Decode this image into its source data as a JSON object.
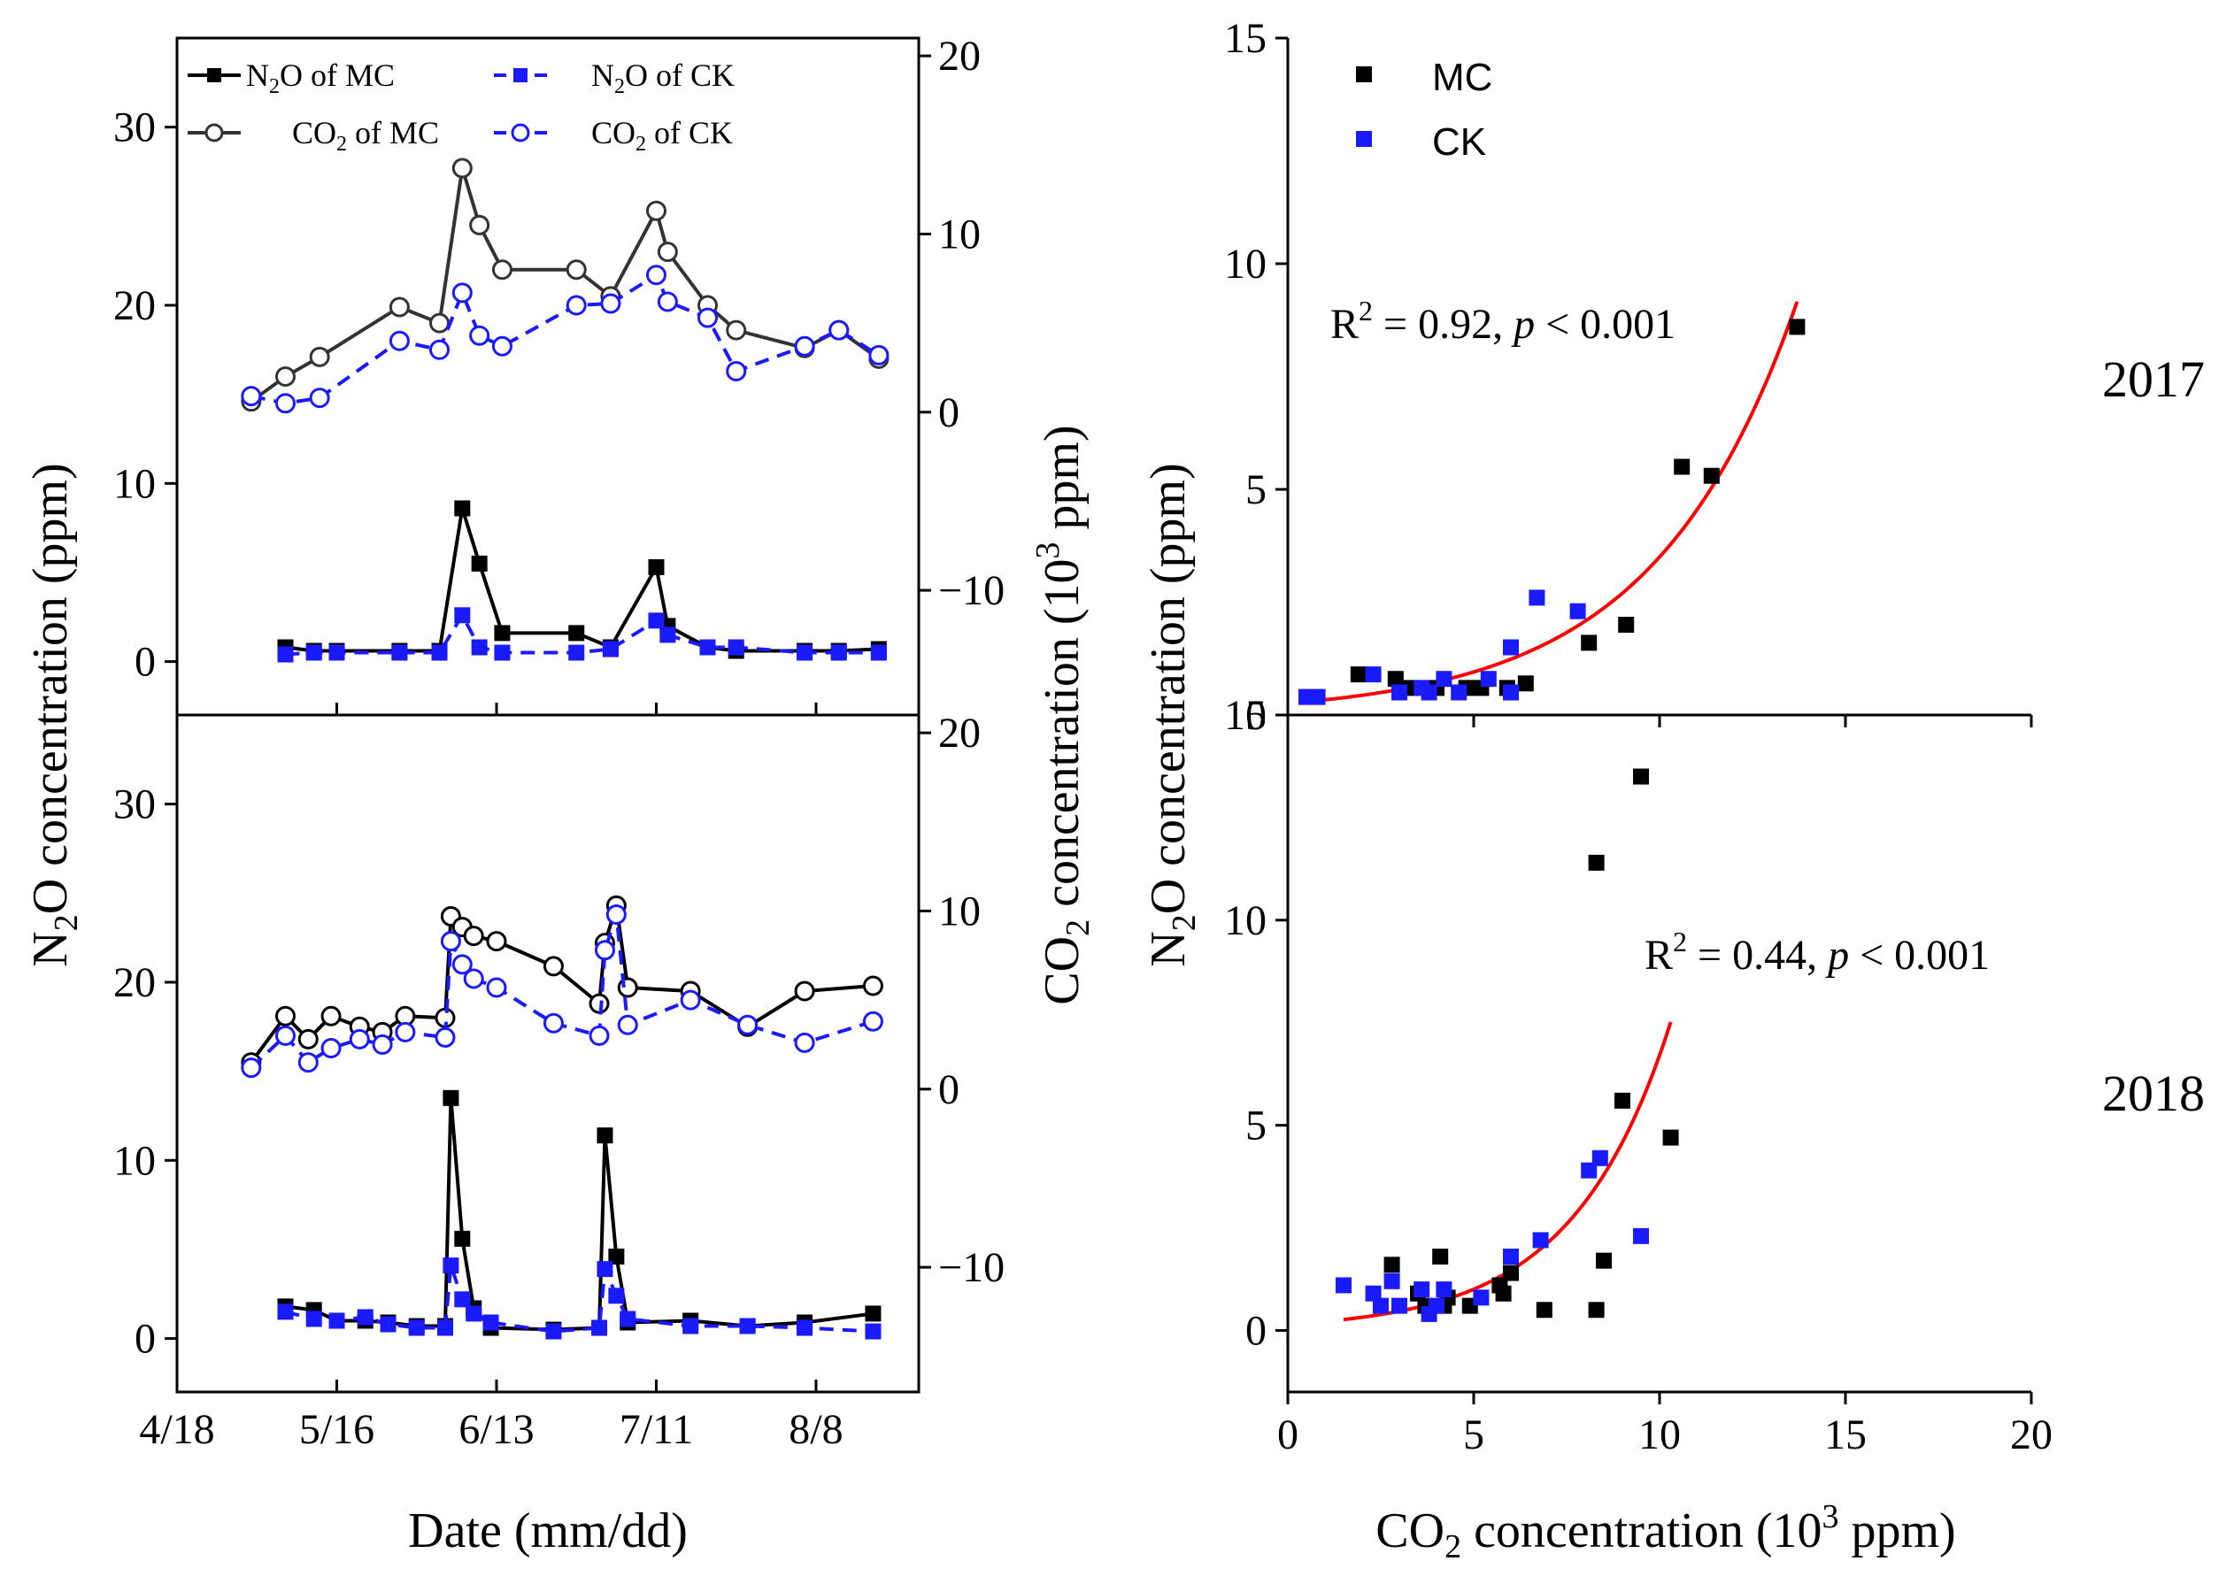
{
  "chart_data": [
    {
      "panel": "time-series-2017",
      "type": "line",
      "xlabel": "Date (mm/dd)",
      "ylabel_left": {
        "pre": "N",
        "sub": "2",
        "post": "O concentration (ppm)"
      },
      "ylabel_right": {
        "pre": "CO",
        "sub": "2",
        "mid": " concentration (10",
        "sup": "3",
        "post": " ppm)"
      },
      "xticks": [
        "4/18",
        "5/16",
        "6/13",
        "7/11",
        "8/8"
      ],
      "xlim_days": [
        0,
        130
      ],
      "xtick_days": [
        0,
        28,
        56,
        84,
        112
      ],
      "ylim_left": [
        -3,
        35
      ],
      "yticks_left": [
        0,
        10,
        20,
        30
      ],
      "ylim_right": [
        -17,
        21
      ],
      "yticks_right": [
        -10,
        0,
        10,
        20
      ],
      "legend": [
        {
          "pre": "N",
          "sub": "2",
          "post": "O of MC",
          "series": "n2o_mc"
        },
        {
          "pre": "N",
          "sub": "2",
          "post": "O of CK",
          "series": "n2o_ck"
        },
        {
          "pre": "CO",
          "sub": "2",
          "post": " of MC",
          "series": "co2_mc"
        },
        {
          "pre": "CO",
          "sub": "2",
          "post": " of CK",
          "series": "co2_ck"
        }
      ],
      "series": [
        {
          "name": "N2O of MC",
          "key": "n2o_mc",
          "axis": "left",
          "color": "#000000",
          "marker": "square-filled",
          "dash": false,
          "x": [
            19,
            24,
            28,
            39,
            46,
            50,
            53,
            57,
            70,
            76,
            84,
            86,
            93,
            98,
            110,
            116,
            123
          ],
          "values": [
            0.8,
            0.6,
            0.6,
            0.6,
            0.6,
            8.6,
            5.5,
            1.6,
            1.6,
            0.8,
            5.3,
            2.0,
            0.8,
            0.6,
            0.6,
            0.6,
            0.7
          ]
        },
        {
          "name": "N2O of CK",
          "key": "n2o_ck",
          "axis": "left",
          "color": "#1a1aff",
          "marker": "square-filled",
          "dash": true,
          "x": [
            19,
            24,
            28,
            39,
            46,
            50,
            53,
            57,
            70,
            76,
            84,
            86,
            93,
            98,
            110,
            116,
            123
          ],
          "values": [
            0.4,
            0.5,
            0.5,
            0.5,
            0.5,
            2.6,
            0.8,
            0.5,
            0.5,
            0.7,
            2.3,
            1.5,
            0.8,
            0.8,
            0.5,
            0.5,
            0.5
          ]
        },
        {
          "name": "CO2 of MC",
          "key": "co2_mc",
          "axis": "right",
          "color": "#333333",
          "marker": "circle-open",
          "dash": false,
          "x": [
            13,
            19,
            25,
            39,
            46,
            50,
            53,
            57,
            70,
            76,
            84,
            86,
            93,
            98,
            110,
            116,
            123
          ],
          "values": [
            0.6,
            2.0,
            3.1,
            5.9,
            5.0,
            13.7,
            10.5,
            8.0,
            8.0,
            6.5,
            11.3,
            9.0,
            6.0,
            4.6,
            3.6,
            4.6,
            3.0
          ]
        },
        {
          "name": "CO2 of CK",
          "key": "co2_ck",
          "axis": "right",
          "color": "#1a1aff",
          "marker": "circle-open",
          "dash": true,
          "x": [
            13,
            19,
            25,
            39,
            46,
            50,
            53,
            57,
            70,
            76,
            84,
            86,
            93,
            98,
            110,
            116,
            123
          ],
          "values": [
            0.9,
            0.5,
            0.8,
            4.0,
            3.5,
            6.7,
            4.3,
            3.7,
            6.0,
            6.1,
            7.7,
            6.2,
            5.3,
            2.3,
            3.7,
            4.6,
            3.2
          ]
        }
      ]
    },
    {
      "panel": "time-series-2018",
      "type": "line",
      "xlim_days": [
        0,
        130
      ],
      "ylim_left": [
        -3,
        35
      ],
      "yticks_left": [
        0,
        10,
        20,
        30
      ],
      "ylim_right": [
        -17,
        21
      ],
      "yticks_right": [
        -10,
        0,
        10,
        20
      ],
      "series": [
        {
          "name": "N2O of MC",
          "key": "n2o_mc",
          "axis": "left",
          "color": "#000000",
          "marker": "square-filled",
          "dash": false,
          "x": [
            19,
            24,
            28,
            33,
            37,
            42,
            47,
            48,
            50,
            52,
            55,
            66,
            74,
            75,
            77,
            79,
            90,
            100,
            110,
            122
          ],
          "values": [
            1.8,
            1.6,
            1.0,
            1.0,
            0.9,
            0.7,
            0.7,
            13.5,
            5.6,
            1.7,
            0.6,
            0.5,
            0.6,
            11.4,
            4.6,
            0.9,
            1.0,
            0.7,
            0.9,
            1.4
          ]
        },
        {
          "name": "N2O of CK",
          "key": "n2o_ck",
          "axis": "left",
          "color": "#1a1aff",
          "marker": "square-filled",
          "dash": true,
          "x": [
            19,
            24,
            28,
            33,
            37,
            42,
            47,
            48,
            50,
            52,
            55,
            66,
            74,
            75,
            77,
            79,
            90,
            100,
            110,
            122
          ],
          "values": [
            1.5,
            1.1,
            1.0,
            1.2,
            0.8,
            0.6,
            0.6,
            4.1,
            2.2,
            1.4,
            0.9,
            0.4,
            0.6,
            3.9,
            2.4,
            1.1,
            0.7,
            0.7,
            0.6,
            0.4
          ]
        },
        {
          "name": "CO2 of MC",
          "key": "co2_mc",
          "axis": "right",
          "color": "#000000",
          "marker": "circle-open",
          "dash": false,
          "x": [
            13,
            19,
            23,
            27,
            32,
            36,
            40,
            47,
            48,
            50,
            52,
            56,
            66,
            74,
            75,
            77,
            79,
            90,
            100,
            110,
            122
          ],
          "values": [
            1.5,
            4.1,
            2.8,
            4.1,
            3.5,
            3.2,
            4.1,
            4.0,
            9.7,
            9.1,
            8.6,
            8.3,
            6.9,
            4.8,
            8.2,
            10.3,
            5.7,
            5.5,
            3.5,
            5.5,
            5.8
          ]
        },
        {
          "name": "CO2 of CK",
          "key": "co2_ck",
          "axis": "right",
          "color": "#1a1aff",
          "marker": "circle-open",
          "dash": true,
          "x": [
            13,
            19,
            23,
            27,
            32,
            36,
            40,
            47,
            48,
            50,
            52,
            56,
            66,
            74,
            75,
            77,
            79,
            90,
            100,
            110,
            122
          ],
          "values": [
            1.2,
            3.0,
            1.5,
            2.3,
            2.8,
            2.5,
            3.2,
            2.9,
            8.3,
            7.0,
            6.2,
            5.7,
            3.7,
            3.0,
            7.8,
            9.8,
            3.6,
            5.0,
            3.6,
            2.6,
            3.8
          ]
        }
      ]
    },
    {
      "panel": "scatter-2017",
      "type": "scatter",
      "year_label": "2017",
      "xlim": [
        0,
        20
      ],
      "ylim": [
        0,
        15
      ],
      "yticks": [
        0,
        5,
        10,
        15
      ],
      "annotation": {
        "pre": "R",
        "sup": "2",
        "mid": " = 0.92, ",
        "italic": "p",
        "post": " < 0.001"
      },
      "legend": [
        {
          "label": "MC",
          "color": "#000000"
        },
        {
          "label": "CK",
          "color": "#1a1aff"
        }
      ],
      "series": [
        {
          "name": "MC",
          "color": "#000000",
          "x": [
            1.9,
            2.9,
            3.3,
            4.0,
            4.8,
            5.2,
            5.9,
            6.4,
            8.1,
            9.1,
            10.6,
            11.4,
            13.7
          ],
          "y": [
            0.9,
            0.8,
            0.6,
            0.6,
            0.6,
            0.6,
            0.6,
            0.7,
            1.6,
            2.0,
            5.5,
            5.3,
            8.6
          ]
        },
        {
          "name": "CK",
          "color": "#1a1aff",
          "x": [
            0.5,
            0.8,
            2.3,
            3.0,
            3.6,
            3.8,
            4.2,
            4.6,
            5.4,
            6.0,
            6.0,
            6.7,
            7.8
          ],
          "y": [
            0.4,
            0.4,
            0.9,
            0.5,
            0.6,
            0.5,
            0.8,
            0.5,
            0.8,
            0.5,
            1.5,
            2.6,
            2.3
          ]
        }
      ],
      "fit": {
        "color": "#ff0000",
        "type": "exponential",
        "a": 0.26,
        "b": 0.26,
        "x_range": [
          0.5,
          13.7
        ]
      }
    },
    {
      "panel": "scatter-2018",
      "type": "scatter",
      "year_label": "2018",
      "xlabel": {
        "pre": "CO",
        "sub": "2",
        "mid": " concentration (10",
        "sup": "3",
        "post": " ppm)"
      },
      "ylabel": {
        "pre": "N",
        "sub": "2",
        "post": "O concentration (ppm)"
      },
      "xlim": [
        0,
        20
      ],
      "xticks": [
        0,
        5,
        10,
        15,
        20
      ],
      "ylim": [
        -1.5,
        15
      ],
      "yticks": [
        0,
        5,
        10,
        15
      ],
      "annotation": {
        "pre": "R",
        "sup": "2",
        "mid": " = 0.44, ",
        "italic": "p",
        "post": " < 0.001"
      },
      "series": [
        {
          "name": "MC",
          "color": "#000000",
          "x": [
            2.8,
            3.5,
            3.7,
            4.1,
            4.2,
            4.3,
            4.9,
            5.7,
            5.8,
            6.0,
            6.9,
            8.3,
            8.3,
            8.5,
            9.0,
            9.5,
            10.3
          ],
          "y": [
            1.6,
            0.9,
            0.6,
            1.8,
            0.6,
            0.8,
            0.6,
            1.1,
            0.9,
            1.4,
            0.5,
            0.5,
            11.4,
            1.7,
            5.6,
            13.5,
            4.7
          ]
        },
        {
          "name": "CK",
          "color": "#1a1aff",
          "x": [
            1.5,
            2.3,
            2.5,
            2.8,
            3.0,
            3.6,
            3.8,
            4.0,
            4.2,
            5.2,
            6.0,
            6.8,
            8.1,
            8.4,
            9.5
          ],
          "y": [
            1.1,
            0.9,
            0.6,
            1.2,
            0.6,
            1.0,
            0.4,
            0.6,
            1.0,
            0.8,
            1.8,
            2.2,
            3.9,
            4.2,
            2.3
          ]
        }
      ],
      "fit": {
        "color": "#ff0000",
        "type": "exponential",
        "a": 0.15,
        "b": 0.38,
        "x_range": [
          1.5,
          10.3
        ]
      }
    }
  ]
}
